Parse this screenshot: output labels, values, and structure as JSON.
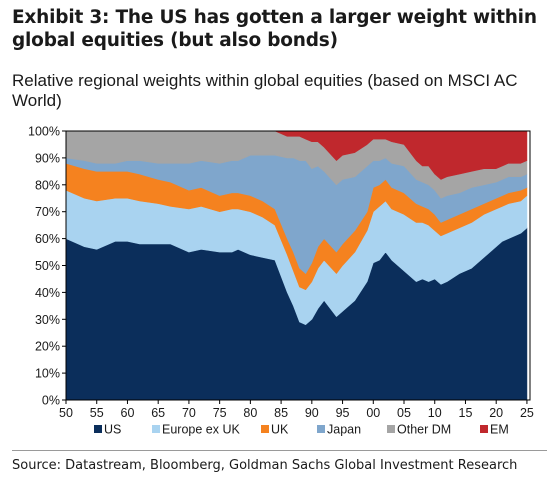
{
  "header": {
    "title": "Exhibit 3: The US has gotten a larger weight within global equities (but also bonds)",
    "subtitle": "Relative regional weights within global equities (based on MSCI AC World)"
  },
  "source": "Source: Datastream, Bloomberg, Goldman Sachs Global Investment Research",
  "chart_data": {
    "type": "area",
    "stacked": true,
    "title": "Relative regional weights within global equities (based on MSCI AC World)",
    "xlabel": "",
    "ylabel": "",
    "xlim": [
      1950,
      2025.5
    ],
    "ylim": [
      0,
      100
    ],
    "x_tick_labels": [
      "50",
      "55",
      "60",
      "65",
      "70",
      "75",
      "80",
      "85",
      "90",
      "95",
      "00",
      "05",
      "10",
      "15",
      "20",
      "25"
    ],
    "y_tick_labels": [
      "0%",
      "10%",
      "20%",
      "30%",
      "40%",
      "50%",
      "60%",
      "70%",
      "80%",
      "90%",
      "100%"
    ],
    "grid": false,
    "legend_position": "bottom",
    "x": [
      1950,
      1953,
      1955,
      1958,
      1960,
      1962,
      1965,
      1967,
      1970,
      1972,
      1975,
      1977,
      1978,
      1980,
      1982,
      1984,
      1986,
      1987,
      1988,
      1989,
      1990,
      1991,
      1992,
      1994,
      1995,
      1997,
      1999,
      2000,
      2001,
      2002,
      2003,
      2005,
      2007,
      2008,
      2009,
      2010,
      2011,
      2012,
      2014,
      2016,
      2018,
      2020,
      2021,
      2022,
      2024,
      2025
    ],
    "series": [
      {
        "name": "US",
        "color": "#0b2e5b",
        "values": [
          60,
          57,
          56,
          59,
          59,
          58,
          58,
          58,
          55,
          56,
          55,
          55,
          56,
          54,
          53,
          52,
          40,
          35,
          29,
          28,
          30,
          34,
          37,
          31,
          33,
          37,
          44,
          51,
          52,
          55,
          52,
          48,
          44,
          45,
          44,
          45,
          43,
          44,
          47,
          49,
          53,
          57,
          59,
          60,
          62,
          64
        ]
      },
      {
        "name": "Europe ex UK",
        "color": "#a9d3f0",
        "values": [
          18,
          18,
          18,
          16,
          16,
          16,
          15,
          14,
          16,
          16,
          15,
          16,
          15,
          16,
          15,
          13,
          14,
          13,
          13,
          13,
          14,
          15,
          15,
          16,
          17,
          18,
          19,
          19,
          20,
          19,
          19,
          21,
          22,
          21,
          21,
          18,
          18,
          18,
          17,
          17,
          16,
          14,
          13,
          13,
          12,
          12
        ]
      },
      {
        "name": "UK",
        "color": "#f5821f",
        "values": [
          10,
          11,
          11,
          10,
          10,
          10,
          9,
          9,
          7,
          7,
          6,
          6,
          6,
          6,
          6,
          6,
          6,
          7,
          7,
          6,
          7,
          8,
          8,
          8,
          8,
          8,
          7,
          9,
          8,
          8,
          8,
          8,
          7,
          6,
          6,
          6,
          5,
          5,
          5,
          5,
          4,
          4,
          4,
          4,
          4,
          3
        ]
      },
      {
        "name": "Japan",
        "color": "#7fa6cc",
        "values": [
          2,
          3,
          3,
          3,
          4,
          5,
          6,
          7,
          10,
          10,
          12,
          12,
          12,
          15,
          17,
          20,
          30,
          35,
          40,
          42,
          35,
          30,
          25,
          25,
          24,
          20,
          17,
          10,
          9,
          8,
          9,
          10,
          9,
          9,
          9,
          9,
          9,
          9,
          8,
          8,
          7,
          6,
          6,
          6,
          5,
          5
        ]
      },
      {
        "name": "Other DM",
        "color": "#a5a5a5",
        "values": [
          10,
          11,
          12,
          12,
          11,
          11,
          12,
          12,
          12,
          11,
          12,
          11,
          11,
          9,
          9,
          9,
          8,
          8,
          9,
          8,
          10,
          9,
          9,
          9,
          9,
          9,
          8,
          8,
          8,
          7,
          8,
          8,
          7,
          6,
          7,
          6,
          7,
          7,
          7,
          6,
          6,
          5,
          5,
          5,
          5,
          5
        ]
      },
      {
        "name": "EM",
        "color": "#c0282d",
        "values": [
          0,
          0,
          0,
          0,
          0,
          0,
          0,
          0,
          0,
          0,
          0,
          0,
          0,
          0,
          0,
          0,
          2,
          2,
          2,
          3,
          4,
          4,
          6,
          11,
          9,
          8,
          5,
          3,
          3,
          3,
          4,
          5,
          11,
          13,
          13,
          16,
          18,
          17,
          16,
          15,
          14,
          14,
          13,
          12,
          12,
          11
        ]
      }
    ]
  }
}
